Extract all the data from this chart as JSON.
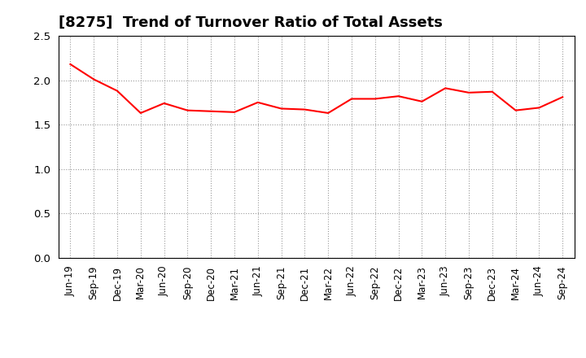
{
  "title": "[8275]  Trend of Turnover Ratio of Total Assets",
  "x_labels": [
    "Jun-19",
    "Sep-19",
    "Dec-19",
    "Mar-20",
    "Jun-20",
    "Sep-20",
    "Dec-20",
    "Mar-21",
    "Jun-21",
    "Sep-21",
    "Dec-21",
    "Mar-22",
    "Jun-22",
    "Sep-22",
    "Dec-22",
    "Mar-23",
    "Jun-23",
    "Sep-23",
    "Dec-23",
    "Mar-24",
    "Jun-24",
    "Sep-24"
  ],
  "values": [
    2.18,
    2.01,
    1.88,
    1.63,
    1.74,
    1.66,
    1.65,
    1.64,
    1.75,
    1.68,
    1.67,
    1.63,
    1.79,
    1.79,
    1.82,
    1.76,
    1.91,
    1.86,
    1.87,
    1.66,
    1.69,
    1.81
  ],
  "line_color": "#FF0000",
  "line_width": 1.5,
  "ylim": [
    0.0,
    2.5
  ],
  "yticks": [
    0.0,
    0.5,
    1.0,
    1.5,
    2.0,
    2.5
  ],
  "grid_color": "#999999",
  "grid_style": "dotted",
  "bg_color": "#ffffff",
  "title_fontsize": 13,
  "tick_fontsize": 8.5
}
